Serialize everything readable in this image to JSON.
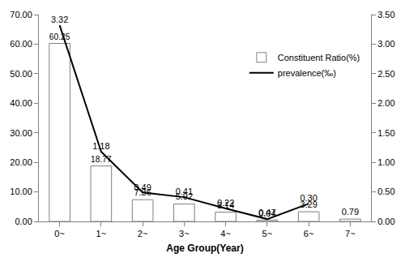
{
  "chart_data": {
    "type": "bar",
    "x_label": "Age Group(Year)",
    "categories": [
      "0~",
      "1~",
      "2~",
      "3~",
      "4~",
      "5~",
      "6~",
      "7~"
    ],
    "series": [
      {
        "name": "Constituent Ratio(%)",
        "type": "bar",
        "color": "#ffffff",
        "values": [
          60.25,
          18.77,
          7.36,
          5.92,
          3.14,
          0.47,
          3.29,
          0.79
        ]
      },
      {
        "name": "prevalence(‰)",
        "type": "line",
        "axis": "y2",
        "color": "#000000",
        "values": [
          3.32,
          1.18,
          0.49,
          0.41,
          0.22,
          0.04,
          0.3,
          null
        ],
        "value_labels": [
          "3.32",
          "1.18",
          "0.49",
          "0.41",
          "0.22",
          "0.04",
          "0.30",
          null
        ]
      }
    ],
    "ylim": [
      0,
      70
    ],
    "yticks": [
      {
        "value": 0,
        "label": "0.00"
      },
      {
        "value": 10,
        "label": "10.00"
      },
      {
        "value": 20,
        "label": "20.00"
      },
      {
        "value": 30,
        "label": "30.00"
      },
      {
        "value": 40,
        "label": "40.00"
      },
      {
        "value": 50,
        "label": "50.00"
      },
      {
        "value": 60,
        "label": "60.00"
      },
      {
        "value": 70,
        "label": "70.00"
      }
    ],
    "y2lim": [
      0,
      3.5
    ],
    "y2ticks": [
      {
        "value": 0,
        "label": "0.00"
      },
      {
        "value": 0.5,
        "label": "0.50"
      },
      {
        "value": 1,
        "label": "1.00"
      },
      {
        "value": 1.5,
        "label": "1.50"
      },
      {
        "value": 2,
        "label": "2.00"
      },
      {
        "value": 2.5,
        "label": "2.50"
      },
      {
        "value": 3,
        "label": "3.00"
      },
      {
        "value": 3.5,
        "label": "3.50"
      }
    ],
    "data_labels": true,
    "legend": "upper right",
    "grid": false
  }
}
